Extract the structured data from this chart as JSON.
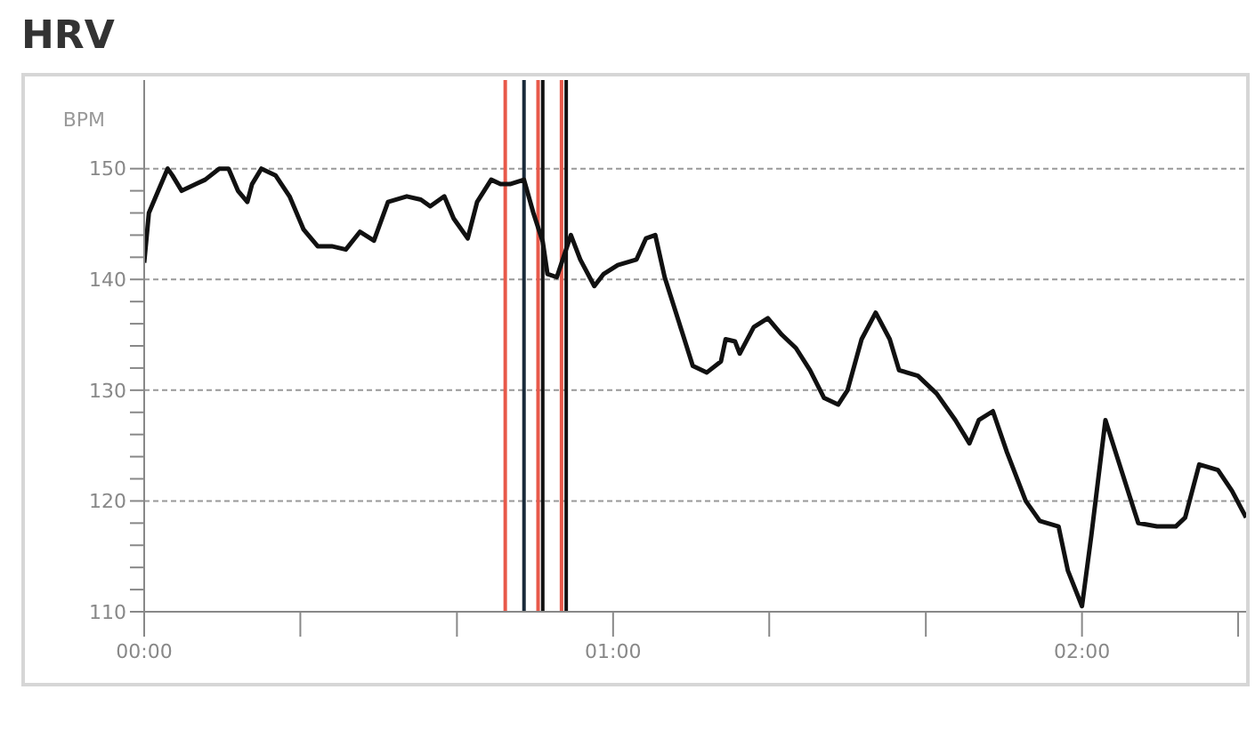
{
  "chart_data": {
    "type": "line",
    "title": "HRV",
    "ylabel": "BPM",
    "x": [
      0,
      0.01,
      0.03,
      0.05,
      0.06,
      0.08,
      0.11,
      0.13,
      0.16,
      0.18,
      0.2,
      0.22,
      0.23,
      0.25,
      0.28,
      0.31,
      0.34,
      0.37,
      0.4,
      0.43,
      0.46,
      0.49,
      0.52,
      0.56,
      0.59,
      0.61,
      0.64,
      0.66,
      0.69,
      0.71,
      0.74,
      0.76,
      0.78,
      0.81,
      0.83,
      0.85,
      0.86,
      0.88,
      0.91,
      0.93,
      0.96,
      0.98,
      1.01,
      1.05,
      1.07,
      1.09,
      1.11,
      1.14,
      1.17,
      1.2,
      1.23,
      1.24,
      1.26,
      1.27,
      1.3,
      1.33,
      1.36,
      1.39,
      1.42,
      1.45,
      1.48,
      1.5,
      1.53,
      1.56,
      1.59,
      1.61,
      1.65,
      1.69,
      1.73,
      1.76,
      1.78,
      1.81,
      1.84,
      1.88,
      1.91,
      1.95,
      1.97,
      2,
      2.02,
      2.05,
      2.08,
      2.12,
      2.16,
      2.2,
      2.22,
      2.25,
      2.29,
      2.32,
      2.35
    ],
    "series": [
      {
        "color": "#111111",
        "values": [
          141.5,
          146,
          148,
          150,
          149.4,
          148,
          148.6,
          149,
          150,
          150,
          148,
          147,
          148.6,
          150,
          149.4,
          147.5,
          144.5,
          143,
          143,
          142.7,
          144.3,
          143.5,
          147,
          147.5,
          147.2,
          146.6,
          147.5,
          145.5,
          143.7,
          147,
          149,
          148.6,
          148.6,
          149,
          146,
          143.4,
          140.5,
          140.2,
          144,
          141.8,
          139.4,
          140.5,
          141.3,
          141.8,
          143.7,
          144,
          140.2,
          136.2,
          132.2,
          131.6,
          132.6,
          134.6,
          134.4,
          133.3,
          135.7,
          136.5,
          135,
          133.8,
          131.8,
          129.3,
          128.7,
          130,
          134.6,
          137,
          134.6,
          131.8,
          131.3,
          129.7,
          127.3,
          125.2,
          127.3,
          128.1,
          124.4,
          120,
          118.2,
          117.7,
          113.7,
          110.5,
          116.9,
          127.3,
          123.3,
          118,
          117.7,
          117.7,
          118.5,
          123.3,
          122.8,
          120.9,
          118.5
        ]
      }
    ],
    "xlim": [
      0,
      2.35
    ],
    "xticks": [
      {
        "value": 0,
        "label": "00:00"
      },
      {
        "value": 0.333,
        "label": null
      },
      {
        "value": 0.667,
        "label": null
      },
      {
        "value": 1,
        "label": "01:00"
      },
      {
        "value": 1.333,
        "label": null
      },
      {
        "value": 1.667,
        "label": null
      },
      {
        "value": 2,
        "label": "02:00"
      },
      {
        "value": 2.333,
        "label": null
      }
    ],
    "ylim": [
      110,
      158
    ],
    "yticks": [
      110,
      {
        "value": 112,
        "label": null
      },
      {
        "value": 114,
        "label": null
      },
      {
        "value": 116,
        "label": null
      },
      {
        "value": 118,
        "label": null
      },
      120,
      {
        "value": 122,
        "label": null
      },
      {
        "value": 124,
        "label": null
      },
      {
        "value": 126,
        "label": null
      },
      {
        "value": 128,
        "label": null
      },
      130,
      {
        "value": 132,
        "label": null
      },
      {
        "value": 134,
        "label": null
      },
      {
        "value": 136,
        "label": null
      },
      {
        "value": 138,
        "label": null
      },
      140,
      {
        "value": 142,
        "label": null
      },
      {
        "value": 144,
        "label": null
      },
      {
        "value": 146,
        "label": null
      },
      {
        "value": 148,
        "label": null
      },
      150
    ],
    "ref_lines": [
      {
        "axis": "x",
        "value": 0.77,
        "color": "#e8594a"
      },
      {
        "axis": "x",
        "value": 0.81,
        "color": "#1a2a3a"
      },
      {
        "axis": "x",
        "value": 0.84,
        "color": "#e8594a"
      },
      {
        "axis": "x",
        "value": 0.85,
        "color": "#111111"
      },
      {
        "axis": "x",
        "value": 0.89,
        "color": "#e8594a"
      },
      {
        "axis": "x",
        "value": 0.9,
        "color": "#111111"
      }
    ],
    "grid": "y",
    "marker": "none",
    "line_style": "solid"
  }
}
